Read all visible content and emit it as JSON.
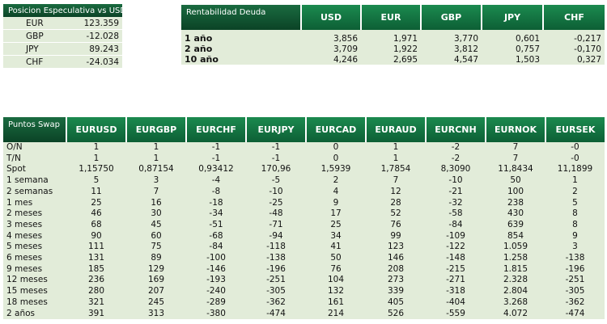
{
  "posicion": {
    "title": "Posicion Especulativa vs USD",
    "rows": [
      {
        "label": "EUR",
        "value": "123.359"
      },
      {
        "label": "GBP",
        "value": "-12.028"
      },
      {
        "label": "JPY",
        "value": "89.243"
      },
      {
        "label": "CHF",
        "value": "-24.034"
      }
    ]
  },
  "rentabilidad": {
    "title": "Rentabilidad Deuda",
    "columns": [
      "USD",
      "EUR",
      "GBP",
      "JPY",
      "CHF"
    ],
    "rows": [
      {
        "label": "1 año",
        "values": [
          "3,856",
          "1,971",
          "3,770",
          "0,601",
          "-0,217"
        ]
      },
      {
        "label": "2 año",
        "values": [
          "3,709",
          "1,922",
          "3,812",
          "0,757",
          "-0,170"
        ]
      },
      {
        "label": "10 año",
        "values": [
          "4,246",
          "2,695",
          "4,547",
          "1,503",
          "0,327"
        ]
      }
    ]
  },
  "swap": {
    "title": "Puntos Swap",
    "columns": [
      "EURUSD",
      "EURGBP",
      "EURCHF",
      "EURJPY",
      "EURCAD",
      "EURAUD",
      "EURCNH",
      "EURNOK",
      "EURSEK"
    ],
    "rows": [
      {
        "label": "O/N",
        "values": [
          "1",
          "1",
          "-1",
          "-1",
          "0",
          "1",
          "-2",
          "7",
          "-0"
        ]
      },
      {
        "label": "T/N",
        "values": [
          "1",
          "1",
          "-1",
          "-1",
          "0",
          "1",
          "-2",
          "7",
          "-0"
        ]
      },
      {
        "label": "Spot",
        "values": [
          "1,15750",
          "0,87154",
          "0,93412",
          "170,96",
          "1,5939",
          "1,7854",
          "8,3090",
          "11,8434",
          "11,1899"
        ]
      },
      {
        "label": "1 semana",
        "values": [
          "5",
          "3",
          "-4",
          "-5",
          "2",
          "7",
          "-10",
          "50",
          "1"
        ]
      },
      {
        "label": "2 semanas",
        "values": [
          "11",
          "7",
          "-8",
          "-10",
          "4",
          "12",
          "-21",
          "100",
          "2"
        ]
      },
      {
        "label": "1 mes",
        "values": [
          "25",
          "16",
          "-18",
          "-25",
          "9",
          "28",
          "-32",
          "238",
          "5"
        ]
      },
      {
        "label": "2 meses",
        "values": [
          "46",
          "30",
          "-34",
          "-48",
          "17",
          "52",
          "-58",
          "430",
          "8"
        ]
      },
      {
        "label": "3 meses",
        "values": [
          "68",
          "45",
          "-51",
          "-71",
          "25",
          "76",
          "-84",
          "639",
          "8"
        ]
      },
      {
        "label": "4 meses",
        "values": [
          "90",
          "60",
          "-68",
          "-94",
          "34",
          "99",
          "-109",
          "854",
          "9"
        ]
      },
      {
        "label": "5 meses",
        "values": [
          "111",
          "75",
          "-84",
          "-118",
          "41",
          "123",
          "-122",
          "1.059",
          "3"
        ]
      },
      {
        "label": "6 meses",
        "values": [
          "131",
          "89",
          "-100",
          "-138",
          "50",
          "146",
          "-148",
          "1.258",
          "-138"
        ]
      },
      {
        "label": "9 meses",
        "values": [
          "185",
          "129",
          "-146",
          "-196",
          "76",
          "208",
          "-215",
          "1.815",
          "-196"
        ]
      },
      {
        "label": "12 meses",
        "values": [
          "236",
          "169",
          "-193",
          "-251",
          "104",
          "273",
          "-271",
          "2.328",
          "-251"
        ]
      },
      {
        "label": "15 meses",
        "values": [
          "280",
          "207",
          "-240",
          "-305",
          "132",
          "339",
          "-318",
          "2.804",
          "-305"
        ]
      },
      {
        "label": "18 meses",
        "values": [
          "321",
          "245",
          "-289",
          "-362",
          "161",
          "405",
          "-404",
          "3.268",
          "-362"
        ]
      },
      {
        "label": "2 años",
        "values": [
          "391",
          "313",
          "-380",
          "-474",
          "214",
          "526",
          "-559",
          "4.072",
          "-474"
        ]
      }
    ]
  },
  "colors": {
    "header_dark": "#0d4a2b",
    "header_green": "#0f6d3d",
    "cell_background": "#e2ecd9"
  }
}
